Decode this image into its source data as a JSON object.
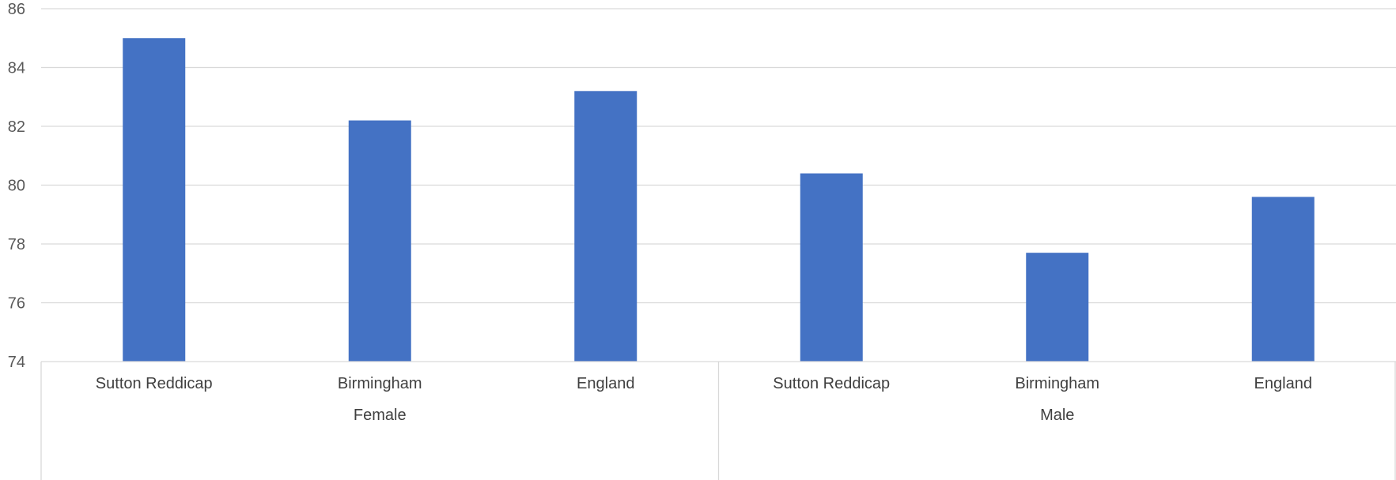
{
  "chart_data": {
    "type": "bar",
    "title": "",
    "xlabel": "",
    "ylabel": "",
    "ylim": [
      74,
      86
    ],
    "yticks": [
      74,
      76,
      78,
      80,
      82,
      84,
      86
    ],
    "grid": true,
    "legend": "none",
    "bar_color": "#4472c4",
    "groups": [
      {
        "name": "Female",
        "categories": [
          "Sutton Reddicap",
          "Birmingham",
          "England"
        ]
      },
      {
        "name": "Male",
        "categories": [
          "Sutton Reddicap",
          "Birmingham",
          "England"
        ]
      }
    ],
    "categories": [
      "Sutton Reddicap",
      "Birmingham",
      "England",
      "Sutton Reddicap",
      "Birmingham",
      "England"
    ],
    "values": [
      85.0,
      82.2,
      83.2,
      80.4,
      77.7,
      79.6
    ]
  }
}
